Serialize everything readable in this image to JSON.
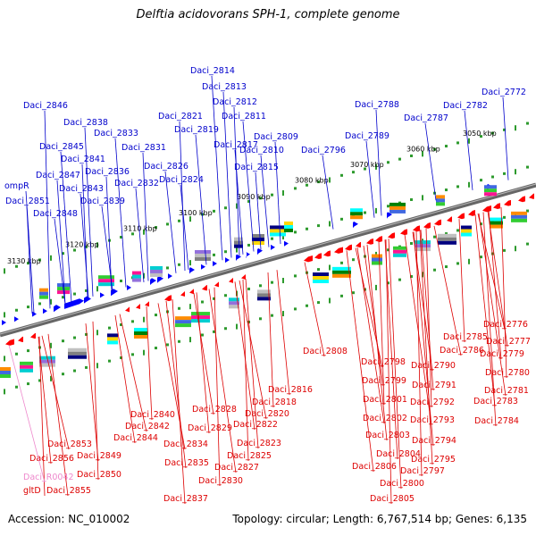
{
  "title": "Delftia acidovorans SPH-1, complete genome",
  "footer": {
    "accession": "Accession: NC_010002",
    "summary": "Topology: circular; Length: 6,767,514 bp; Genes: 6,135"
  },
  "colors": {
    "top_strand_label": "#0000cc",
    "bottom_strand_label": "#dd0000",
    "rna_label": "#ee88cc",
    "top_strand_arrow": "#0000ff",
    "bottom_strand_arrow": "#ff0000",
    "backbone": "#888888",
    "tick_dot": "#2d9a2d"
  },
  "scale_ticks": [
    "3050 kbp",
    "3060 kbp",
    "3070 kbp",
    "3080 kbp",
    "3090 kbp",
    "3100 kbp",
    "3110 kbp",
    "3120 kbp",
    "3130 kbp"
  ],
  "top_genes": [
    "Daci_2772",
    "Daci_2782",
    "Daci_2787",
    "Daci_2788",
    "Daci_2789",
    "Daci_2796",
    "Daci_2809",
    "Daci_2810",
    "Daci_2811",
    "Daci_2812",
    "Daci_2813",
    "Daci_2814",
    "Daci_2815",
    "Daci_2817",
    "Daci_2819",
    "Daci_2821",
    "Daci_2824",
    "Daci_2826",
    "Daci_2831",
    "Daci_2832",
    "Daci_2833",
    "Daci_2836",
    "Daci_2838",
    "Daci_2839",
    "Daci_2841",
    "Daci_2843",
    "Daci_2845",
    "Daci_2846",
    "Daci_2847",
    "Daci_2848",
    "Daci_2851",
    "ompR"
  ],
  "bottom_genes": [
    "Daci_2776",
    "Daci_2777",
    "Daci_2779",
    "Daci_2780",
    "Daci_2781",
    "Daci_2783",
    "Daci_2784",
    "Daci_2785",
    "Daci_2786",
    "Daci_2790",
    "Daci_2791",
    "Daci_2792",
    "Daci_2793",
    "Daci_2794",
    "Daci_2795",
    "Daci_2797",
    "Daci_2798",
    "Daci_2799",
    "Daci_2800",
    "Daci_2801",
    "Daci_2802",
    "Daci_2803",
    "Daci_2804",
    "Daci_2805",
    "Daci_2806",
    "Daci_2808",
    "Daci_2816",
    "Daci_2818",
    "Daci_2820",
    "Daci_2822",
    "Daci_2823",
    "Daci_2825",
    "Daci_2827",
    "Daci_2828",
    "Daci_2829",
    "Daci_2830",
    "Daci_2834",
    "Daci_2835",
    "Daci_2837",
    "Daci_2840",
    "Daci_2842",
    "Daci_2844",
    "Daci_2849",
    "Daci_2850",
    "Daci_2853",
    "Daci_2855",
    "Daci_2856",
    "gltD"
  ],
  "rna_genes": [
    "Daci_R0042"
  ]
}
